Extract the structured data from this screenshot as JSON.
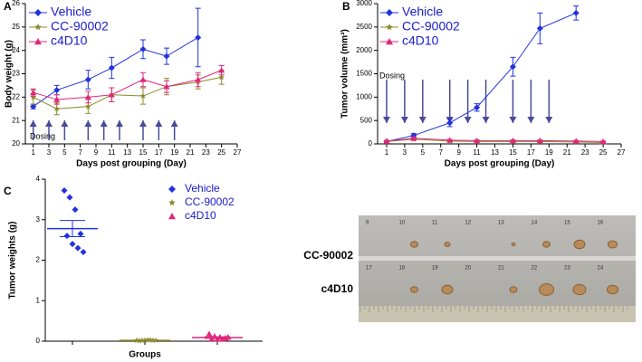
{
  "chart_data": [
    {
      "type": "line",
      "panel_label": "A",
      "y_label": "Body weight (g)",
      "x_label": "Days post grouping (Day)",
      "annotation": "Dosing",
      "dosing_days": [
        1,
        3,
        5,
        8,
        10,
        12,
        15,
        17,
        19
      ],
      "x": [
        1,
        4,
        8,
        11,
        15,
        18,
        22,
        25
      ],
      "xlim": [
        0,
        27
      ],
      "xticks": [
        1,
        3,
        5,
        7,
        9,
        11,
        13,
        15,
        17,
        19,
        21,
        23,
        25,
        27
      ],
      "ylim": [
        20,
        26
      ],
      "yticks": [
        20,
        21,
        22,
        23,
        24,
        25,
        26
      ],
      "series": [
        {
          "name": "Vehicle",
          "color": "#2233dd",
          "marker": "diamond",
          "values": [
            21.6,
            22.3,
            22.75,
            23.25,
            24.05,
            23.75,
            24.55,
            null
          ],
          "errors": [
            0.1,
            0.2,
            0.4,
            0.45,
            0.4,
            0.35,
            1.25,
            null
          ]
        },
        {
          "name": "CC-90002",
          "color": "#8c8a2c",
          "marker": "star",
          "values": [
            22.0,
            21.5,
            21.6,
            22.1,
            22.05,
            22.45,
            22.65,
            22.85
          ],
          "errors": [
            0.3,
            0.25,
            0.3,
            0.3,
            0.35,
            0.35,
            0.3,
            0.3
          ]
        },
        {
          "name": "c4D10",
          "color": "#e0287a",
          "marker": "triangle",
          "values": [
            22.2,
            21.9,
            22.0,
            22.1,
            22.75,
            22.45,
            22.75,
            23.15
          ],
          "errors": [
            0.15,
            0.2,
            0.25,
            0.3,
            0.3,
            0.25,
            0.3,
            0.2
          ]
        }
      ]
    },
    {
      "type": "line",
      "panel_label": "B",
      "y_label": "Tumor volume (mm³)",
      "x_label": "Days post grouping (Day)",
      "annotation": "Dosing",
      "dosing_days": [
        1,
        3,
        5,
        8,
        10,
        12,
        15,
        17,
        19
      ],
      "x": [
        1,
        4,
        8,
        11,
        15,
        18,
        22,
        25
      ],
      "xlim": [
        0,
        27
      ],
      "xticks": [
        1,
        3,
        5,
        7,
        9,
        11,
        13,
        15,
        17,
        19,
        21,
        23,
        25,
        27
      ],
      "ylim": [
        0,
        3000
      ],
      "yticks": [
        0,
        500,
        1000,
        1500,
        2000,
        2500,
        3000
      ],
      "series": [
        {
          "name": "Vehicle",
          "color": "#2233dd",
          "marker": "diamond",
          "values": [
            50,
            180,
            450,
            780,
            1650,
            2470,
            2800,
            null
          ],
          "errors": [
            20,
            40,
            80,
            80,
            200,
            330,
            150,
            null
          ]
        },
        {
          "name": "CC-90002",
          "color": "#8c8a2c",
          "marker": "star",
          "values": [
            50,
            100,
            60,
            50,
            50,
            50,
            40,
            30
          ],
          "errors": [
            10,
            20,
            15,
            10,
            10,
            10,
            10,
            10
          ]
        },
        {
          "name": "c4D10",
          "color": "#e0287a",
          "marker": "triangle",
          "values": [
            60,
            120,
            80,
            70,
            70,
            70,
            60,
            50
          ],
          "errors": [
            15,
            20,
            15,
            15,
            15,
            15,
            15,
            10
          ]
        }
      ]
    },
    {
      "type": "dot",
      "panel_label": "C",
      "y_label": "Tumor weights (g)",
      "x_label": "Groups",
      "ylim": [
        0,
        4
      ],
      "yticks": [
        0,
        1,
        2,
        3,
        4
      ],
      "series": [
        {
          "name": "Vehicle",
          "color": "#2233dd",
          "marker": "diamond",
          "values": [
            3.72,
            3.55,
            3.25,
            2.65,
            2.6,
            2.4,
            2.3,
            2.2
          ],
          "mean": 2.78,
          "sem": 0.2
        },
        {
          "name": "CC-90002",
          "color": "#8c8a2c",
          "marker": "star",
          "values": [
            0.02,
            0.02,
            0.03,
            0.02,
            0.01,
            0.02,
            0.03,
            0.02
          ],
          "mean": 0.02,
          "sem": 0.005
        },
        {
          "name": "c4D10",
          "color": "#e0287a",
          "marker": "triangle",
          "values": [
            0.18,
            0.12,
            0.1,
            0.08,
            0.06,
            0.05,
            0.05,
            0.1
          ],
          "mean": 0.09,
          "sem": 0.02
        }
      ]
    }
  ],
  "photo": {
    "row_labels": [
      "CC-90002",
      "c4D10"
    ],
    "tube_numbers": [
      [
        "9",
        "10",
        "11",
        "12",
        "13",
        "14",
        "15",
        "16"
      ],
      [
        "17",
        "18",
        "19",
        "20",
        "21",
        "22",
        "23",
        "24"
      ]
    ]
  }
}
